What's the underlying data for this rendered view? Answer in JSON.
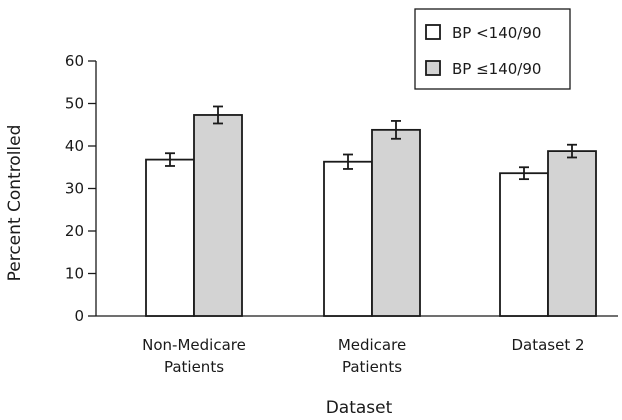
{
  "chart_data": {
    "type": "bar",
    "title": "",
    "xlabel": "Dataset",
    "ylabel": "Percent Controlled",
    "ylim": [
      0,
      60
    ],
    "yticks": [
      0,
      10,
      20,
      30,
      40,
      50,
      60
    ],
    "categories": [
      [
        "Non-Medicare",
        "Patients"
      ],
      [
        "Medicare",
        "Patients"
      ],
      [
        "Dataset 2"
      ]
    ],
    "series": [
      {
        "name": "BP <140/90",
        "color": "#ffffff",
        "values": [
          36.8,
          36.3,
          33.6
        ],
        "error": [
          1.5,
          1.7,
          1.4
        ]
      },
      {
        "name": "BP ≤140/90",
        "color": "#d3d3d3",
        "values": [
          47.3,
          43.8,
          38.8
        ],
        "error": [
          2.0,
          2.1,
          1.5
        ]
      }
    ],
    "grid": false,
    "legend_position": "top-right"
  }
}
